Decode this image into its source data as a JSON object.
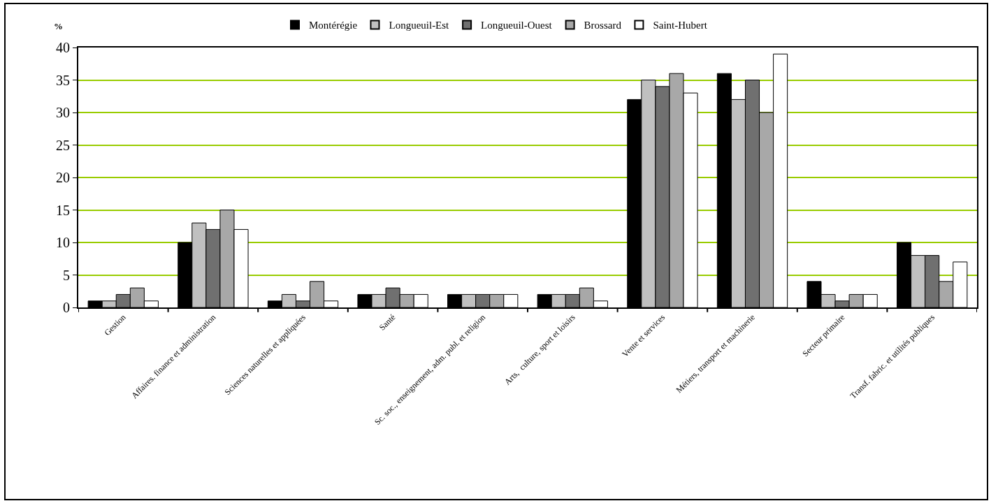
{
  "chart_data": {
    "type": "bar",
    "ylabel": "%",
    "categories": [
      "Gestion",
      "Affaires. finance et administration",
      "Sciences naturelles et appliquées",
      "Santé",
      "Sc. soc., enseignement, adm. publ. et religion",
      "Arts,  culture, sport et loisirs",
      "Vente et services",
      "Métiers, transport et machinerie",
      "Secteur primaire",
      "Transf. fabric. et utilités publiques"
    ],
    "series": [
      {
        "name": "Montérégie",
        "color": "#000000",
        "values": [
          1,
          10,
          1,
          2,
          2,
          2,
          32,
          36,
          4,
          10
        ]
      },
      {
        "name": "Longueuil-Est",
        "color": "#c0c0c0",
        "values": [
          1,
          13,
          2,
          2,
          2,
          2,
          35,
          32,
          2,
          8
        ]
      },
      {
        "name": "Longueuil-Ouest",
        "color": "#707070",
        "values": [
          2,
          12,
          1,
          3,
          2,
          2,
          34,
          35,
          1,
          8
        ]
      },
      {
        "name": "Brossard",
        "color": "#a8a8a8",
        "values": [
          3,
          15,
          4,
          2,
          2,
          3,
          36,
          30,
          2,
          4
        ]
      },
      {
        "name": "Saint-Hubert",
        "color": "#ffffff",
        "values": [
          1,
          12,
          1,
          2,
          2,
          1,
          33,
          39,
          2,
          7
        ]
      }
    ],
    "ylim": [
      0,
      40
    ],
    "yticks": [
      0,
      5,
      10,
      15,
      20,
      25,
      30,
      35,
      40
    ],
    "grid": "y",
    "legend": "top"
  }
}
